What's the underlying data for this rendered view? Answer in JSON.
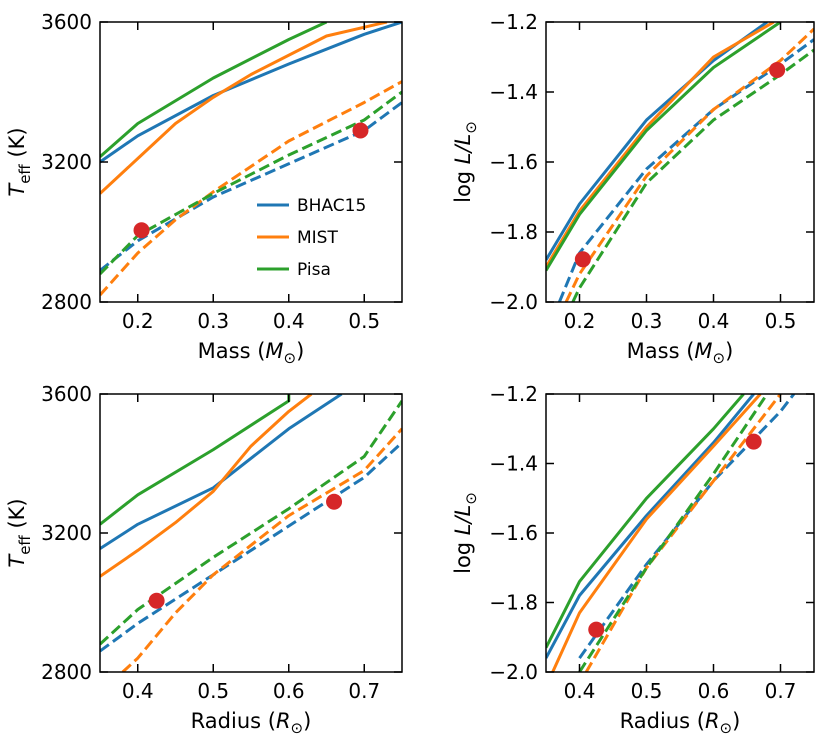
{
  "chart_data": [
    {
      "type": "line",
      "panel": "top-left",
      "xlabel": "Mass",
      "xunit_symbol": "M",
      "ylabel_main": "T",
      "ylabel_sub": "eff",
      "ylabel_unit": "(K)",
      "xlim": [
        0.15,
        0.55
      ],
      "ylim": [
        2800,
        3600
      ],
      "xticks": [
        0.2,
        0.3,
        0.4,
        0.5
      ],
      "xtick_labels": [
        "0.2",
        "0.3",
        "0.4",
        "0.5"
      ],
      "yticks": [
        2800,
        3200,
        3600
      ],
      "ytick_labels": [
        "2800",
        "3200",
        "3600"
      ],
      "legend": {
        "position": "lower-right",
        "entries": [
          "BHAC15",
          "MIST",
          "Pisa"
        ]
      },
      "series": [
        {
          "name": "BHAC15",
          "style": "solid",
          "color": "#1f77b4",
          "x": [
            0.15,
            0.2,
            0.3,
            0.4,
            0.5,
            0.55
          ],
          "y": [
            3200,
            3275,
            3390,
            3480,
            3565,
            3600
          ]
        },
        {
          "name": "MIST",
          "style": "solid",
          "color": "#ff7f0e",
          "x": [
            0.15,
            0.2,
            0.25,
            0.3,
            0.35,
            0.45,
            0.53
          ],
          "y": [
            3110,
            3210,
            3310,
            3385,
            3450,
            3560,
            3600
          ]
        },
        {
          "name": "Pisa",
          "style": "solid",
          "color": "#2ca02c",
          "x": [
            0.15,
            0.2,
            0.3,
            0.4,
            0.45
          ],
          "y": [
            3215,
            3310,
            3440,
            3550,
            3600
          ]
        },
        {
          "name": "BHAC15",
          "style": "dashed",
          "color": "#1f77b4",
          "x": [
            0.15,
            0.2,
            0.3,
            0.4,
            0.5,
            0.55
          ],
          "y": [
            2890,
            2975,
            3100,
            3195,
            3290,
            3370
          ]
        },
        {
          "name": "MIST",
          "style": "dashed",
          "color": "#ff7f0e",
          "x": [
            0.15,
            0.2,
            0.25,
            0.3,
            0.4,
            0.5,
            0.55
          ],
          "y": [
            2820,
            2940,
            3035,
            3115,
            3260,
            3370,
            3430
          ]
        },
        {
          "name": "Pisa",
          "style": "dashed",
          "color": "#2ca02c",
          "x": [
            0.15,
            0.2,
            0.3,
            0.4,
            0.5,
            0.55
          ],
          "y": [
            2880,
            2990,
            3110,
            3220,
            3320,
            3400
          ]
        }
      ],
      "points": [
        {
          "x": 0.205,
          "y": 3005,
          "color": "#d62728"
        },
        {
          "x": 0.495,
          "y": 3290,
          "color": "#d62728"
        }
      ]
    },
    {
      "type": "line",
      "panel": "top-right",
      "xlabel": "Mass",
      "xunit_symbol": "M",
      "ylabel_main": "log L/L",
      "xlim": [
        0.15,
        0.55
      ],
      "ylim": [
        -2.0,
        -1.2
      ],
      "xticks": [
        0.2,
        0.3,
        0.4,
        0.5
      ],
      "xtick_labels": [
        "0.2",
        "0.3",
        "0.4",
        "0.5"
      ],
      "yticks": [
        -2.0,
        -1.8,
        -1.6,
        -1.4,
        -1.2
      ],
      "ytick_labels": [
        "−2.0",
        "−1.8",
        "−1.6",
        "−1.4",
        "−1.2"
      ],
      "series": [
        {
          "name": "BHAC15",
          "style": "solid",
          "color": "#1f77b4",
          "x": [
            0.15,
            0.2,
            0.3,
            0.4,
            0.48
          ],
          "y": [
            -1.88,
            -1.72,
            -1.48,
            -1.31,
            -1.2
          ]
        },
        {
          "name": "MIST",
          "style": "solid",
          "color": "#ff7f0e",
          "x": [
            0.15,
            0.2,
            0.3,
            0.4,
            0.49
          ],
          "y": [
            -1.9,
            -1.74,
            -1.5,
            -1.3,
            -1.2
          ]
        },
        {
          "name": "Pisa",
          "style": "solid",
          "color": "#2ca02c",
          "x": [
            0.15,
            0.2,
            0.3,
            0.4,
            0.5
          ],
          "y": [
            -1.91,
            -1.75,
            -1.51,
            -1.33,
            -1.2
          ]
        },
        {
          "name": "BHAC15",
          "style": "dashed",
          "color": "#1f77b4",
          "x": [
            0.17,
            0.2,
            0.3,
            0.4,
            0.5,
            0.55
          ],
          "y": [
            -2.0,
            -1.86,
            -1.62,
            -1.45,
            -1.32,
            -1.25
          ]
        },
        {
          "name": "MIST",
          "style": "dashed",
          "color": "#ff7f0e",
          "x": [
            0.18,
            0.2,
            0.3,
            0.4,
            0.5,
            0.55
          ],
          "y": [
            -2.0,
            -1.92,
            -1.64,
            -1.45,
            -1.31,
            -1.22
          ]
        },
        {
          "name": "Pisa",
          "style": "dashed",
          "color": "#2ca02c",
          "x": [
            0.19,
            0.2,
            0.3,
            0.4,
            0.5,
            0.55
          ],
          "y": [
            -2.0,
            -1.96,
            -1.66,
            -1.48,
            -1.35,
            -1.28
          ]
        }
      ],
      "points": [
        {
          "x": 0.205,
          "y": -1.878,
          "color": "#d62728"
        },
        {
          "x": 0.495,
          "y": -1.337,
          "color": "#d62728"
        }
      ]
    },
    {
      "type": "line",
      "panel": "bottom-left",
      "xlabel": "Radius",
      "xunit_symbol": "R",
      "ylabel_main": "T",
      "ylabel_sub": "eff",
      "ylabel_unit": "(K)",
      "xlim": [
        0.35,
        0.75
      ],
      "ylim": [
        2800,
        3600
      ],
      "xticks": [
        0.4,
        0.5,
        0.6,
        0.7
      ],
      "xtick_labels": [
        "0.4",
        "0.5",
        "0.6",
        "0.7"
      ],
      "yticks": [
        2800,
        3200,
        3600
      ],
      "ytick_labels": [
        "2800",
        "3200",
        "3600"
      ],
      "series": [
        {
          "name": "BHAC15",
          "style": "solid",
          "color": "#1f77b4",
          "x": [
            0.35,
            0.4,
            0.5,
            0.6,
            0.67
          ],
          "y": [
            3155,
            3225,
            3330,
            3500,
            3600
          ]
        },
        {
          "name": "MIST",
          "style": "solid",
          "color": "#ff7f0e",
          "x": [
            0.35,
            0.4,
            0.45,
            0.5,
            0.55,
            0.6,
            0.63
          ],
          "y": [
            3075,
            3150,
            3230,
            3320,
            3450,
            3550,
            3600
          ]
        },
        {
          "name": "Pisa",
          "style": "solid",
          "color": "#2ca02c",
          "x": [
            0.35,
            0.4,
            0.5,
            0.6,
            0.6
          ],
          "y": [
            3225,
            3310,
            3440,
            3580,
            3600
          ]
        },
        {
          "name": "BHAC15",
          "style": "dashed",
          "color": "#1f77b4",
          "x": [
            0.35,
            0.4,
            0.5,
            0.6,
            0.7,
            0.75
          ],
          "y": [
            2860,
            2940,
            3080,
            3220,
            3360,
            3460
          ]
        },
        {
          "name": "MIST",
          "style": "dashed",
          "color": "#ff7f0e",
          "x": [
            0.38,
            0.4,
            0.45,
            0.5,
            0.6,
            0.7,
            0.75
          ],
          "y": [
            2800,
            2840,
            2970,
            3080,
            3250,
            3380,
            3500
          ]
        },
        {
          "name": "Pisa",
          "style": "dashed",
          "color": "#2ca02c",
          "x": [
            0.35,
            0.4,
            0.5,
            0.6,
            0.7,
            0.75
          ],
          "y": [
            2880,
            2980,
            3130,
            3270,
            3420,
            3580
          ]
        }
      ],
      "points": [
        {
          "x": 0.425,
          "y": 3005,
          "color": "#d62728"
        },
        {
          "x": 0.66,
          "y": 3290,
          "color": "#d62728"
        }
      ]
    },
    {
      "type": "line",
      "panel": "bottom-right",
      "xlabel": "Radius",
      "xunit_symbol": "R",
      "ylabel_main": "log L/L",
      "xlim": [
        0.35,
        0.75
      ],
      "ylim": [
        -2.0,
        -1.2
      ],
      "xticks": [
        0.4,
        0.5,
        0.6,
        0.7
      ],
      "xtick_labels": [
        "0.4",
        "0.5",
        "0.6",
        "0.7"
      ],
      "yticks": [
        -2.0,
        -1.8,
        -1.6,
        -1.4,
        -1.2
      ],
      "ytick_labels": [
        "−2.0",
        "−1.8",
        "−1.6",
        "−1.4",
        "−1.2"
      ],
      "series": [
        {
          "name": "BHAC15",
          "style": "solid",
          "color": "#1f77b4",
          "x": [
            0.35,
            0.4,
            0.5,
            0.6,
            0.66
          ],
          "y": [
            -1.96,
            -1.78,
            -1.55,
            -1.34,
            -1.2
          ]
        },
        {
          "name": "MIST",
          "style": "solid",
          "color": "#ff7f0e",
          "x": [
            0.36,
            0.4,
            0.5,
            0.6,
            0.67
          ],
          "y": [
            -2.0,
            -1.83,
            -1.56,
            -1.35,
            -1.2
          ]
        },
        {
          "name": "Pisa",
          "style": "solid",
          "color": "#2ca02c",
          "x": [
            0.35,
            0.4,
            0.5,
            0.6,
            0.645
          ],
          "y": [
            -1.93,
            -1.74,
            -1.5,
            -1.3,
            -1.2
          ]
        },
        {
          "name": "BHAC15",
          "style": "dashed",
          "color": "#1f77b4",
          "x": [
            0.4,
            0.5,
            0.6,
            0.7,
            0.72
          ],
          "y": [
            -1.96,
            -1.69,
            -1.45,
            -1.25,
            -1.2
          ]
        },
        {
          "name": "MIST",
          "style": "dashed",
          "color": "#ff7f0e",
          "x": [
            0.41,
            0.5,
            0.6,
            0.7
          ],
          "y": [
            -2.0,
            -1.7,
            -1.45,
            -1.2
          ]
        },
        {
          "name": "Pisa",
          "style": "dashed",
          "color": "#2ca02c",
          "x": [
            0.4,
            0.5,
            0.6,
            0.68
          ],
          "y": [
            -2.0,
            -1.7,
            -1.43,
            -1.2
          ]
        }
      ],
      "points": [
        {
          "x": 0.425,
          "y": -1.878,
          "color": "#d62728"
        },
        {
          "x": 0.66,
          "y": -1.337,
          "color": "#d62728"
        }
      ]
    }
  ]
}
